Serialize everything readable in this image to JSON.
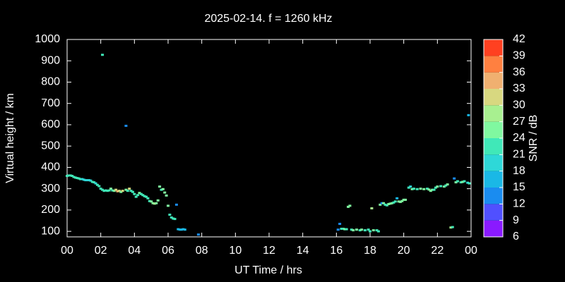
{
  "chart_data": {
    "type": "scatter",
    "title": "2025-02-14. f = 1260 kHz",
    "x_label": "UT Time / hrs",
    "y_label": "Virtual height / km",
    "colorbar_label": "SNR / dB",
    "xlim": [
      0,
      24
    ],
    "xticks": [
      {
        "value": 0,
        "label": "00"
      },
      {
        "value": 2,
        "label": "02"
      },
      {
        "value": 4,
        "label": "04"
      },
      {
        "value": 6,
        "label": "06"
      },
      {
        "value": 8,
        "label": "08"
      },
      10,
      12,
      14,
      16,
      18,
      20,
      22,
      {
        "value": 24,
        "label": "00"
      }
    ],
    "ylim": [
      74,
      1000
    ],
    "yticks": [
      100,
      200,
      300,
      400,
      500,
      600,
      700,
      800,
      900,
      1000
    ],
    "clim": [
      6,
      42
    ],
    "cticks": [
      6,
      9,
      12,
      15,
      18,
      21,
      24,
      27,
      30,
      33,
      36,
      39,
      42
    ],
    "colorscale": [
      "#8a1aff",
      "#5050ff",
      "#1a8cf0",
      "#1ab8e6",
      "#2ed8d8",
      "#40e8b8",
      "#80f8a0",
      "#a8f090",
      "#d8d880",
      "#f0b070",
      "#ff8040",
      "#ff4020"
    ],
    "x": [
      0.0,
      0.1,
      0.2,
      0.3,
      0.4,
      0.5,
      0.6,
      0.7,
      0.8,
      0.9,
      1.0,
      1.1,
      1.2,
      1.3,
      1.4,
      1.5,
      1.6,
      1.7,
      1.8,
      1.9,
      2.0,
      2.1,
      2.2,
      2.3,
      2.4,
      2.5,
      2.6,
      2.7,
      2.8,
      2.9,
      3.0,
      3.1,
      3.2,
      3.3,
      3.5,
      3.6,
      3.7,
      3.8,
      3.9,
      4.0,
      4.1,
      4.2,
      4.3,
      4.4,
      4.5,
      4.6,
      4.7,
      4.8,
      4.9,
      5.0,
      5.1,
      5.2,
      5.3,
      5.4,
      5.5,
      5.6,
      5.7,
      5.8,
      5.9,
      6.0,
      6.1,
      6.2,
      6.3,
      6.4,
      6.5,
      6.6,
      6.7,
      6.8,
      6.9,
      7.0,
      7.8,
      2.1,
      3.5,
      16.1,
      16.2,
      16.3,
      16.4,
      16.5,
      16.6,
      16.7,
      16.8,
      16.9,
      17.0,
      17.2,
      17.4,
      17.5,
      17.7,
      17.9,
      18.0,
      18.2,
      18.4,
      18.5,
      18.1,
      18.6,
      18.7,
      18.8,
      18.9,
      19.0,
      19.1,
      19.2,
      19.3,
      19.4,
      19.5,
      19.6,
      19.7,
      19.8,
      19.9,
      20.0,
      20.1,
      20.3,
      20.4,
      20.5,
      20.6,
      20.8,
      21.0,
      21.2,
      21.4,
      21.5,
      21.6,
      21.7,
      21.8,
      21.9,
      22.0,
      22.2,
      22.4,
      22.5,
      22.6,
      22.8,
      22.9,
      23.0,
      23.1,
      23.2,
      23.4,
      23.5,
      23.6,
      23.8,
      23.9,
      23.85
    ],
    "values": [
      360,
      362,
      362,
      360,
      355,
      352,
      350,
      348,
      345,
      345,
      342,
      340,
      340,
      340,
      338,
      332,
      330,
      325,
      318,
      312,
      300,
      295,
      290,
      292,
      290,
      292,
      300,
      292,
      290,
      295,
      288,
      290,
      285,
      290,
      295,
      290,
      300,
      290,
      285,
      275,
      262,
      270,
      280,
      275,
      270,
      265,
      262,
      255,
      242,
      240,
      232,
      230,
      232,
      245,
      310,
      295,
      298,
      282,
      268,
      220,
      178,
      165,
      160,
      158,
      225,
      110,
      108,
      108,
      110,
      108,
      85,
      928,
      595,
      108,
      135,
      112,
      112,
      110,
      110,
      215,
      220,
      108,
      105,
      108,
      105,
      108,
      105,
      108,
      100,
      105,
      105,
      100,
      208,
      225,
      232,
      232,
      225,
      222,
      228,
      230,
      232,
      235,
      240,
      255,
      240,
      238,
      242,
      248,
      248,
      305,
      310,
      298,
      300,
      298,
      300,
      298,
      300,
      296,
      290,
      295,
      295,
      305,
      310,
      312,
      310,
      315,
      320,
      118,
      120,
      348,
      330,
      335,
      330,
      332,
      335,
      328,
      325,
      645
    ],
    "snr": [
      21,
      21,
      21,
      21,
      21,
      21,
      21,
      21,
      22,
      20,
      20,
      20,
      20,
      20,
      20,
      21,
      21,
      20,
      21,
      21,
      21,
      22,
      22,
      22,
      21,
      22,
      24,
      22,
      26,
      30,
      33,
      30,
      24,
      30,
      24,
      22,
      30,
      22,
      22,
      22,
      22,
      21,
      24,
      22,
      22,
      22,
      22,
      22,
      22,
      24,
      26,
      28,
      24,
      24,
      24,
      22,
      24,
      26,
      24,
      24,
      22,
      22,
      21,
      22,
      12,
      17,
      15,
      15,
      15,
      15,
      12,
      21,
      12,
      12,
      12,
      21,
      22,
      24,
      22,
      24,
      24,
      22,
      24,
      24,
      22,
      24,
      22,
      22,
      21,
      24,
      22,
      21,
      27,
      24,
      12,
      24,
      22,
      22,
      24,
      24,
      24,
      22,
      22,
      17,
      24,
      24,
      26,
      24,
      26,
      22,
      18,
      24,
      22,
      22,
      24,
      24,
      22,
      24,
      26,
      24,
      22,
      22,
      24,
      22,
      24,
      22,
      26,
      27,
      22,
      12,
      24,
      22,
      22,
      24,
      22,
      20,
      22,
      17
    ]
  }
}
